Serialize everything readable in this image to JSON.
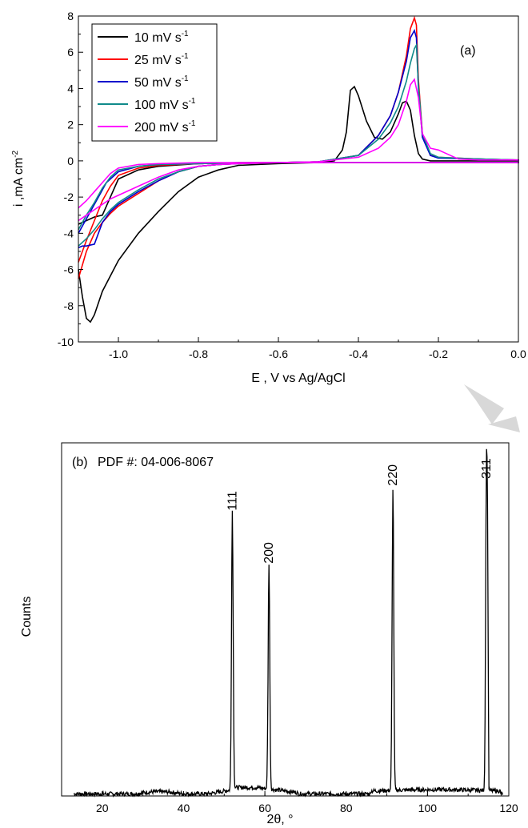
{
  "chart_data": [
    {
      "type": "line",
      "panel_label": "(a)",
      "xlabel": "E , V vs Ag/AgCl",
      "ylabel": "i ,mA cm",
      "ylabel_sup": "-2",
      "xlim": [
        -1.1,
        0.0
      ],
      "ylim": [
        -10,
        8
      ],
      "xticks": [
        -1.0,
        -0.8,
        -0.6,
        -0.4,
        -0.2,
        0.0
      ],
      "xtick_labels": [
        "-1.0",
        "-0.8",
        "-0.6",
        "-0.4",
        "-0.2",
        "0.0"
      ],
      "yticks": [
        -10,
        -8,
        -6,
        -4,
        -2,
        0,
        2,
        4,
        6,
        8
      ],
      "ytick_labels": [
        "-10",
        "-8",
        "-6",
        "-4",
        "-2",
        "0",
        "2",
        "4",
        "6",
        "8"
      ],
      "grid": false,
      "legend_position": "top-left",
      "series": [
        {
          "name": "10 mV s",
          "name_sup": "-1",
          "color": "#000000",
          "x": [
            -1.1,
            -1.09,
            -1.08,
            -1.07,
            -1.06,
            -1.04,
            -1.0,
            -0.95,
            -0.9,
            -0.85,
            -0.8,
            -0.75,
            -0.7,
            -0.6,
            -0.5,
            -0.46,
            -0.44,
            -0.43,
            -0.42,
            -0.41,
            -0.4,
            -0.38,
            -0.36,
            -0.34,
            -0.32,
            -0.3,
            -0.29,
            -0.28,
            -0.27,
            -0.26,
            -0.25,
            -0.24,
            -0.22,
            -0.2,
            -0.1,
            0.0,
            0.0,
            -0.1,
            -0.2,
            -0.3,
            -0.4,
            -0.5,
            -0.6,
            -0.7,
            -0.8,
            -0.9,
            -0.95,
            -1.0,
            -1.02,
            -1.04,
            -1.06,
            -1.08,
            -1.1
          ],
          "y": [
            -6.0,
            -7.5,
            -8.7,
            -8.9,
            -8.5,
            -7.2,
            -5.5,
            -4.0,
            -2.8,
            -1.7,
            -0.9,
            -0.5,
            -0.25,
            -0.15,
            -0.1,
            0.0,
            0.6,
            1.6,
            3.9,
            4.1,
            3.6,
            2.2,
            1.3,
            1.2,
            1.6,
            2.6,
            3.2,
            3.3,
            2.8,
            1.4,
            0.4,
            0.1,
            0.0,
            0.0,
            0.0,
            0.0,
            -0.1,
            -0.1,
            -0.1,
            -0.1,
            -0.1,
            -0.1,
            -0.1,
            -0.1,
            -0.15,
            -0.3,
            -0.5,
            -1.0,
            -2.0,
            -3.0,
            -3.1,
            -3.3,
            -3.5
          ]
        },
        {
          "name": "25 mV s",
          "name_sup": "-1",
          "color": "#ff0000",
          "x": [
            -1.1,
            -1.08,
            -1.06,
            -1.04,
            -1.02,
            -1.0,
            -0.95,
            -0.9,
            -0.85,
            -0.8,
            -0.75,
            -0.7,
            -0.6,
            -0.5,
            -0.4,
            -0.35,
            -0.32,
            -0.3,
            -0.28,
            -0.27,
            -0.26,
            -0.255,
            -0.25,
            -0.24,
            -0.22,
            -0.2,
            -0.1,
            0.0,
            0.0,
            -0.2,
            -0.4,
            -0.6,
            -0.8,
            -0.9,
            -0.95,
            -1.0,
            -1.02,
            -1.04,
            -1.06,
            -1.08,
            -1.1
          ],
          "y": [
            -6.5,
            -5.0,
            -4.0,
            -3.4,
            -2.9,
            -2.5,
            -1.8,
            -1.1,
            -0.6,
            -0.3,
            -0.2,
            -0.15,
            -0.1,
            -0.05,
            0.3,
            1.4,
            2.5,
            3.8,
            5.8,
            7.3,
            7.9,
            7.5,
            4.5,
            1.5,
            0.3,
            0.2,
            0.1,
            0.05,
            -0.1,
            -0.1,
            -0.1,
            -0.1,
            -0.15,
            -0.25,
            -0.4,
            -0.8,
            -1.4,
            -2.2,
            -3.3,
            -4.4,
            -5.6
          ]
        },
        {
          "name": "50 mV s",
          "name_sup": "-1",
          "color": "#0000cc",
          "x": [
            -1.1,
            -1.09,
            -1.08,
            -1.06,
            -1.04,
            -1.02,
            -1.0,
            -0.95,
            -0.9,
            -0.85,
            -0.8,
            -0.75,
            -0.7,
            -0.6,
            -0.5,
            -0.4,
            -0.35,
            -0.32,
            -0.3,
            -0.28,
            -0.27,
            -0.26,
            -0.255,
            -0.25,
            -0.24,
            -0.22,
            -0.2,
            -0.1,
            0.0,
            0.0,
            -0.2,
            -0.4,
            -0.6,
            -0.8,
            -0.9,
            -0.95,
            -1.0,
            -1.03,
            -1.05,
            -1.07,
            -1.09,
            -1.1
          ],
          "y": [
            -4.8,
            -4.7,
            -4.7,
            -4.6,
            -3.4,
            -2.8,
            -2.4,
            -1.7,
            -1.1,
            -0.6,
            -0.3,
            -0.2,
            -0.15,
            -0.1,
            -0.05,
            0.3,
            1.4,
            2.5,
            3.8,
            5.5,
            6.8,
            7.2,
            6.8,
            4.0,
            1.3,
            0.3,
            0.15,
            0.1,
            0.05,
            -0.1,
            -0.1,
            -0.1,
            -0.1,
            -0.15,
            -0.2,
            -0.3,
            -0.6,
            -1.2,
            -2.0,
            -2.8,
            -3.6,
            -4.0
          ]
        },
        {
          "name": "100 mV s",
          "name_sup": "-1",
          "color": "#108a8a",
          "x": [
            -1.1,
            -1.08,
            -1.06,
            -1.04,
            -1.02,
            -1.0,
            -0.95,
            -0.9,
            -0.85,
            -0.8,
            -0.75,
            -0.7,
            -0.6,
            -0.5,
            -0.4,
            -0.35,
            -0.32,
            -0.3,
            -0.28,
            -0.27,
            -0.26,
            -0.255,
            -0.25,
            -0.24,
            -0.22,
            -0.2,
            -0.1,
            0.0,
            0.0,
            -0.2,
            -0.4,
            -0.6,
            -0.8,
            -0.9,
            -0.95,
            -1.0,
            -1.02,
            -1.04,
            -1.06,
            -1.08,
            -1.1
          ],
          "y": [
            -4.7,
            -4.3,
            -3.8,
            -3.2,
            -2.7,
            -2.3,
            -1.6,
            -1.0,
            -0.6,
            -0.3,
            -0.2,
            -0.15,
            -0.1,
            -0.05,
            0.3,
            1.2,
            2.1,
            3.0,
            4.4,
            5.4,
            6.2,
            6.4,
            4.2,
            1.5,
            0.4,
            0.2,
            0.1,
            0.05,
            -0.1,
            -0.1,
            -0.1,
            -0.1,
            -0.15,
            -0.2,
            -0.3,
            -0.5,
            -0.9,
            -1.5,
            -2.3,
            -3.0,
            -3.8
          ]
        },
        {
          "name": "200 mV s",
          "name_sup": "-1",
          "color": "#ff00ff",
          "x": [
            -1.1,
            -1.08,
            -1.06,
            -1.04,
            -1.02,
            -1.0,
            -0.95,
            -0.9,
            -0.85,
            -0.8,
            -0.75,
            -0.7,
            -0.6,
            -0.5,
            -0.4,
            -0.35,
            -0.32,
            -0.3,
            -0.28,
            -0.27,
            -0.26,
            -0.25,
            -0.24,
            -0.22,
            -0.2,
            -0.18,
            -0.15,
            -0.1,
            0.0,
            0.0,
            -0.2,
            -0.4,
            -0.6,
            -0.8,
            -0.9,
            -0.95,
            -1.0,
            -1.02,
            -1.04,
            -1.06,
            -1.08,
            -1.1
          ],
          "y": [
            -3.3,
            -3.0,
            -2.7,
            -2.4,
            -2.1,
            -1.9,
            -1.4,
            -0.9,
            -0.5,
            -0.3,
            -0.2,
            -0.15,
            -0.1,
            -0.05,
            0.2,
            0.7,
            1.3,
            2.0,
            3.3,
            4.2,
            4.5,
            3.5,
            1.5,
            0.7,
            0.6,
            0.4,
            0.1,
            0.05,
            0.05,
            -0.1,
            -0.1,
            -0.1,
            -0.1,
            -0.1,
            -0.15,
            -0.2,
            -0.4,
            -0.7,
            -1.2,
            -1.7,
            -2.2,
            -2.6
          ]
        }
      ]
    },
    {
      "type": "line",
      "panel_label": "(b)",
      "pdf_label": "PDF #: 04-006-8067",
      "xlabel": "2θ, °",
      "ylabel": "Counts",
      "xlim": [
        10,
        120
      ],
      "ylim": [
        0,
        1.0
      ],
      "xticks": [
        20,
        40,
        60,
        80,
        100,
        120
      ],
      "xtick_labels": [
        "20",
        "40",
        "60",
        "80",
        "100",
        "120"
      ],
      "show_y_ticks": false,
      "grid": false,
      "color": "#000000",
      "peaks": [
        {
          "label": "111",
          "x": 52.0,
          "y": 0.79
        },
        {
          "label": "200",
          "x": 61.0,
          "y": 0.64
        },
        {
          "label": "220",
          "x": 91.5,
          "y": 0.86
        },
        {
          "label": "311",
          "x": 114.5,
          "y": 0.88
        }
      ]
    }
  ]
}
